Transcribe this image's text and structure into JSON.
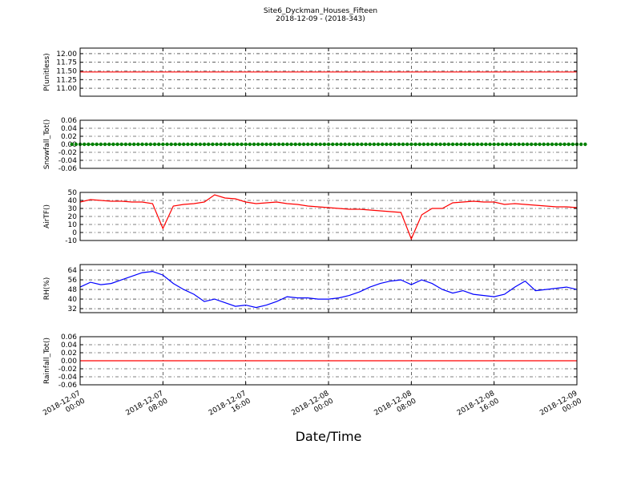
{
  "title": "Site6_Dyckman_Houses_Fifteen",
  "subtitle": "2018-12-09 - (2018-343)",
  "xlabel": "Date/Time",
  "xlim": [
    "2018-12-07 00:00",
    "2018-12-09 00:00"
  ],
  "xticks": [
    "2018-12-07 00:00",
    "2018-12-07 08:00",
    "2018-12-07 16:00",
    "2018-12-08 00:00",
    "2018-12-08 08:00",
    "2018-12-08 16:00",
    "2018-12-09 00:00"
  ],
  "chart_data": [
    {
      "type": "line",
      "ylabel": "P(unitless)",
      "grid": true,
      "ylim": [
        10.77,
        12.16
      ],
      "yticks": [
        {
          "value": 11,
          "label": "11.00"
        },
        11.25,
        {
          "value": 11.5,
          "label": "11.50"
        },
        11.75,
        {
          "value": 12,
          "label": "12.00"
        }
      ],
      "series": [
        {
          "color": "#ff0000",
          "markers": false,
          "x": [
            "2018-12-07 00:00",
            "2018-12-09 00:00"
          ],
          "values": [
            11.47,
            11.47
          ]
        }
      ]
    },
    {
      "type": "line",
      "ylabel": "Snowfall_Tot()",
      "grid": true,
      "ylim": [
        -0.06,
        0.06
      ],
      "yticks": [
        -0.06,
        -0.04,
        -0.02,
        {
          "value": 0,
          "label": "0.00"
        },
        0.02,
        0.04,
        0.06
      ],
      "series": [
        {
          "color": "#008000",
          "markers": true,
          "x": [
            "2018-12-07 00:00",
            "2018-12-07 02:00",
            "2018-12-07 04:00",
            "2018-12-07 06:00",
            "2018-12-07 08:00",
            "2018-12-07 10:00",
            "2018-12-07 12:00",
            "2018-12-07 14:00",
            "2018-12-07 16:00",
            "2018-12-07 18:00",
            "2018-12-07 20:00",
            "2018-12-07 22:00",
            "2018-12-08 00:00",
            "2018-12-08 02:00",
            "2018-12-08 04:00",
            "2018-12-08 06:00",
            "2018-12-08 08:00",
            "2018-12-08 10:00",
            "2018-12-08 12:00",
            "2018-12-08 14:00",
            "2018-12-08 16:00",
            "2018-12-08 18:00",
            "2018-12-08 20:00",
            "2018-12-08 22:00",
            "2018-12-09 00:00"
          ],
          "values": [
            0,
            0,
            0,
            0,
            0,
            0,
            0,
            0,
            0,
            0,
            0,
            0,
            0,
            0,
            0,
            0,
            0,
            0,
            0,
            0,
            0,
            0,
            0,
            0,
            0
          ]
        }
      ]
    },
    {
      "type": "line",
      "ylabel": "AirTF()",
      "grid": true,
      "ylim": [
        -10,
        50
      ],
      "yticks": [
        -10,
        0,
        10,
        20,
        30,
        40,
        50
      ],
      "series": [
        {
          "color": "#ff0000",
          "markers": false,
          "x": [
            "2018-12-07 00:00",
            "2018-12-07 01:00",
            "2018-12-07 02:00",
            "2018-12-07 03:00",
            "2018-12-07 04:00",
            "2018-12-07 05:00",
            "2018-12-07 06:00",
            "2018-12-07 07:00",
            "2018-12-07 08:00",
            "2018-12-07 09:00",
            "2018-12-07 10:00",
            "2018-12-07 11:00",
            "2018-12-07 12:00",
            "2018-12-07 13:00",
            "2018-12-07 14:00",
            "2018-12-07 15:00",
            "2018-12-07 16:00",
            "2018-12-07 17:00",
            "2018-12-07 18:00",
            "2018-12-07 19:00",
            "2018-12-07 20:00",
            "2018-12-07 21:00",
            "2018-12-07 22:00",
            "2018-12-07 23:00",
            "2018-12-08 00:00",
            "2018-12-08 01:00",
            "2018-12-08 02:00",
            "2018-12-08 03:00",
            "2018-12-08 04:00",
            "2018-12-08 05:00",
            "2018-12-08 06:00",
            "2018-12-08 07:00",
            "2018-12-08 08:00",
            "2018-12-08 09:00",
            "2018-12-08 10:00",
            "2018-12-08 11:00",
            "2018-12-08 12:00",
            "2018-12-08 13:00",
            "2018-12-08 14:00",
            "2018-12-08 15:00",
            "2018-12-08 16:00",
            "2018-12-08 17:00",
            "2018-12-08 18:00",
            "2018-12-08 19:00",
            "2018-12-08 20:00",
            "2018-12-08 21:00",
            "2018-12-08 22:00",
            "2018-12-08 23:00",
            "2018-12-09 00:00"
          ],
          "values": [
            38,
            41,
            40,
            39,
            39,
            38,
            38,
            36,
            5,
            33,
            35,
            36,
            38,
            47,
            43,
            42,
            38,
            36,
            37,
            38,
            36,
            35,
            33,
            32,
            31,
            30,
            29,
            29,
            28,
            27,
            26,
            25,
            -8,
            22,
            30,
            30,
            37,
            38,
            39,
            38,
            38,
            35,
            36,
            35,
            34,
            33,
            32,
            32,
            31
          ]
        }
      ]
    },
    {
      "type": "line",
      "ylabel": "RH(%)",
      "grid": true,
      "ylim": [
        28.7,
        68.7
      ],
      "yticks": [
        32,
        40,
        48,
        56,
        64
      ],
      "series": [
        {
          "color": "#0000ff",
          "markers": false,
          "x": [
            "2018-12-07 00:00",
            "2018-12-07 01:00",
            "2018-12-07 02:00",
            "2018-12-07 03:00",
            "2018-12-07 04:00",
            "2018-12-07 05:00",
            "2018-12-07 06:00",
            "2018-12-07 07:00",
            "2018-12-07 08:00",
            "2018-12-07 09:00",
            "2018-12-07 10:00",
            "2018-12-07 11:00",
            "2018-12-07 12:00",
            "2018-12-07 13:00",
            "2018-12-07 14:00",
            "2018-12-07 15:00",
            "2018-12-07 16:00",
            "2018-12-07 17:00",
            "2018-12-07 18:00",
            "2018-12-07 19:00",
            "2018-12-07 20:00",
            "2018-12-07 21:00",
            "2018-12-07 22:00",
            "2018-12-07 23:00",
            "2018-12-08 00:00",
            "2018-12-08 01:00",
            "2018-12-08 02:00",
            "2018-12-08 03:00",
            "2018-12-08 04:00",
            "2018-12-08 05:00",
            "2018-12-08 06:00",
            "2018-12-08 07:00",
            "2018-12-08 08:00",
            "2018-12-08 09:00",
            "2018-12-08 10:00",
            "2018-12-08 11:00",
            "2018-12-08 12:00",
            "2018-12-08 13:00",
            "2018-12-08 14:00",
            "2018-12-08 15:00",
            "2018-12-08 16:00",
            "2018-12-08 17:00",
            "2018-12-08 18:00",
            "2018-12-08 19:00",
            "2018-12-08 20:00",
            "2018-12-08 21:00",
            "2018-12-08 22:00",
            "2018-12-08 23:00",
            "2018-12-09 00:00"
          ],
          "values": [
            50,
            54,
            52,
            53,
            56,
            59,
            62,
            63,
            60,
            53,
            48,
            44,
            38,
            40,
            37,
            34,
            35,
            33,
            35,
            38,
            42,
            41,
            41,
            40,
            40,
            41,
            43,
            46,
            50,
            53,
            55,
            56,
            52,
            56,
            53,
            48,
            45,
            47,
            44,
            43,
            42,
            44,
            50,
            55,
            47,
            48,
            49,
            50,
            48
          ]
        }
      ]
    },
    {
      "type": "line",
      "ylabel": "Rainfall_Tot()",
      "grid": true,
      "ylim": [
        -0.06,
        0.06
      ],
      "yticks": [
        -0.06,
        -0.04,
        -0.02,
        {
          "value": 0,
          "label": "0.00"
        },
        0.02,
        0.04,
        0.06
      ],
      "series": [
        {
          "color": "#ff0000",
          "markers": false,
          "x": [
            "2018-12-07 00:00",
            "2018-12-09 00:00"
          ],
          "values": [
            0,
            0
          ]
        }
      ]
    }
  ]
}
